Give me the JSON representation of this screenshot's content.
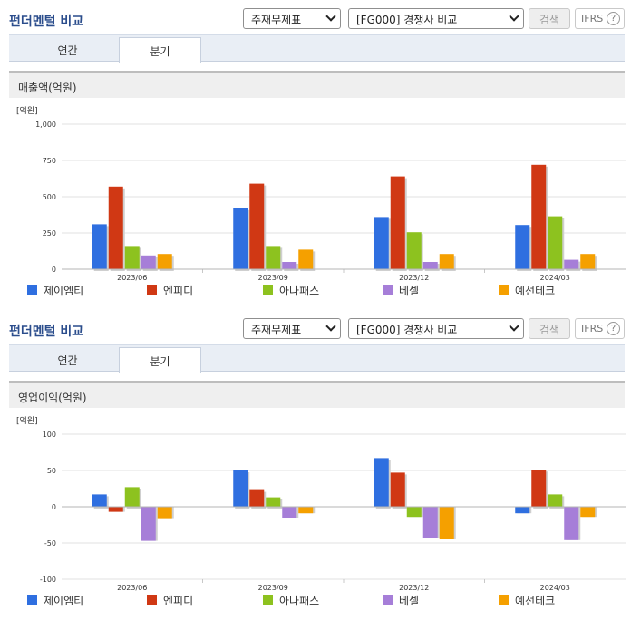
{
  "panels": [
    {
      "title": "펀더멘털 비교",
      "select_a": "주재무제표",
      "select_b": "[FG000] 경쟁사 비교",
      "search_label": "검색",
      "ifrs_label": "IFRS",
      "help_glyph": "?",
      "tabs": [
        {
          "label": "연간"
        },
        {
          "label": "분기"
        }
      ],
      "section_title": "매출액(억원)"
    },
    {
      "title": "펀더멘털 비교",
      "select_a": "주재무제표",
      "select_b": "[FG000] 경쟁사 비교",
      "search_label": "검색",
      "ifrs_label": "IFRS",
      "help_glyph": "?",
      "tabs": [
        {
          "label": "연간"
        },
        {
          "label": "분기"
        }
      ],
      "section_title": "영업이익(억원)"
    }
  ],
  "chart_data": [
    {
      "type": "bar",
      "unit_label": "[억원]",
      "categories": [
        "2023/06",
        "2023/09",
        "2023/12",
        "2024/03"
      ],
      "ylim": [
        0,
        1000
      ],
      "yticks": [
        0,
        250,
        500,
        750,
        1000
      ],
      "ytick_labels": [
        "0",
        "250",
        "500",
        "750",
        "1,000"
      ],
      "grid": true,
      "legend_position": "bottom",
      "series": [
        {
          "name": "제이엠티",
          "color": "#2f6fe0",
          "values": [
            310,
            420,
            360,
            305
          ]
        },
        {
          "name": "엔피디",
          "color": "#d03814",
          "values": [
            570,
            590,
            640,
            720
          ]
        },
        {
          "name": "아나패스",
          "color": "#8dc21f",
          "values": [
            160,
            160,
            255,
            365
          ]
        },
        {
          "name": "베셀",
          "color": "#a67ed8",
          "values": [
            95,
            50,
            50,
            65
          ]
        },
        {
          "name": "예선테크",
          "color": "#f5a000",
          "values": [
            105,
            135,
            105,
            105
          ]
        }
      ]
    },
    {
      "type": "bar",
      "unit_label": "[억원]",
      "categories": [
        "2023/06",
        "2023/09",
        "2023/12",
        "2024/03"
      ],
      "ylim": [
        -100,
        100
      ],
      "yticks": [
        -100,
        -50,
        0,
        50,
        100
      ],
      "ytick_labels": [
        "-100",
        "-50",
        "0",
        "50",
        "100"
      ],
      "grid": true,
      "legend_position": "bottom",
      "series": [
        {
          "name": "제이엠티",
          "color": "#2f6fe0",
          "values": [
            17,
            50,
            67,
            -9
          ]
        },
        {
          "name": "엔피디",
          "color": "#d03814",
          "values": [
            -7,
            23,
            47,
            51
          ]
        },
        {
          "name": "아나패스",
          "color": "#8dc21f",
          "values": [
            27,
            13,
            -14,
            17
          ]
        },
        {
          "name": "베셀",
          "color": "#a67ed8",
          "values": [
            -47,
            -16,
            -43,
            -46
          ]
        },
        {
          "name": "예선테크",
          "color": "#f5a000",
          "values": [
            -17,
            -9,
            -45,
            -14
          ]
        }
      ]
    }
  ]
}
